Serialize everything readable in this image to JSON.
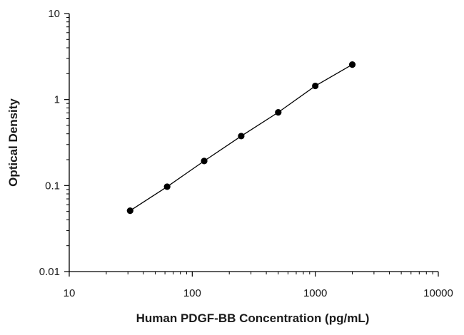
{
  "chart_data": {
    "type": "scatter",
    "title": "",
    "xlabel": "Human PDGF-BB Concentration (pg/mL)",
    "ylabel": "Optical Density",
    "x_scale": "log",
    "y_scale": "log",
    "xlim": [
      10,
      10000
    ],
    "ylim": [
      0.01,
      10
    ],
    "x_ticks": [
      10,
      100,
      1000,
      10000
    ],
    "x_tick_labels": [
      "10",
      "100",
      "1000",
      "10000"
    ],
    "y_ticks": [
      0.01,
      0.1,
      1,
      10
    ],
    "y_tick_labels": [
      "0.01",
      "0.1",
      "1",
      "10"
    ],
    "grid": false,
    "legend": "none",
    "series": [
      {
        "x": [
          31.25,
          62.5,
          125,
          250,
          500,
          1000,
          2000
        ],
        "y": [
          0.051,
          0.097,
          0.193,
          0.376,
          0.71,
          1.44,
          2.55
        ],
        "marker_color": "#000000",
        "fit_line": true,
        "line_color": "#000000"
      }
    ]
  }
}
